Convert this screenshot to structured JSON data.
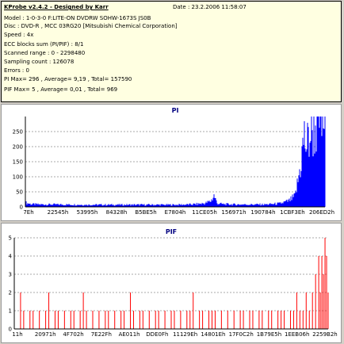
{
  "header": {
    "title": "KProbe v2.4.2 - Designed by Karr",
    "date": "Date : 23.2.2006 11:58:07",
    "model": "Model : 1-0-3-0 F:LITE-ON DVDRW SOHW-1673S JS0B",
    "disc": "Disc : DVD-R , MCC 03RG20  [Mitsubishi Chemical Corporation]",
    "speed": "Speed : 4x",
    "ecc": "ECC blocks sum (PI/PIF) : 8/1",
    "range": "Scanned range : 0 - 2298480",
    "sampling": "Sampling count : 126078",
    "errors": "Errors : 0",
    "pi_stats": "PI Max= 296 , Average= 9,19 , Total= 157590",
    "pif_stats": "PIF Max= 5 , Average= 0,01 , Total= 969"
  },
  "chart_data": [
    {
      "type": "bar",
      "title": "PI",
      "color": "#0000ff",
      "ylim": [
        0,
        300
      ],
      "yticks": [
        0,
        50,
        100,
        150,
        200,
        250
      ],
      "grid": true,
      "x_tick_labels": [
        "7Eh",
        "22545h",
        "53995h",
        "84328h",
        "B5BE5h",
        "E7804h",
        "11CE05h",
        "156971h",
        "190784h",
        "1CBF3Eh",
        "206ED2h"
      ],
      "summary": {
        "max": 296,
        "average": 9.19,
        "total": 157590
      },
      "profile": [
        [
          0,
          14
        ],
        [
          2,
          9
        ],
        [
          5,
          8
        ],
        [
          10,
          8
        ],
        [
          20,
          7
        ],
        [
          30,
          7
        ],
        [
          40,
          7
        ],
        [
          50,
          7
        ],
        [
          55,
          8
        ],
        [
          58,
          10
        ],
        [
          60,
          12
        ],
        [
          62,
          20
        ],
        [
          63,
          38
        ],
        [
          64,
          12
        ],
        [
          66,
          9
        ],
        [
          70,
          8
        ],
        [
          75,
          8
        ],
        [
          80,
          8
        ],
        [
          85,
          11
        ],
        [
          88,
          20
        ],
        [
          90,
          35
        ],
        [
          91,
          85
        ],
        [
          92,
          150
        ],
        [
          93,
          230
        ],
        [
          94,
          200
        ],
        [
          95,
          240
        ],
        [
          96,
          260
        ],
        [
          97,
          270
        ],
        [
          98,
          296
        ],
        [
          99,
          285
        ],
        [
          100,
          280
        ]
      ]
    },
    {
      "type": "bar",
      "title": "PIF",
      "color": "#ff0000",
      "ylim": [
        0,
        5
      ],
      "yticks": [
        0,
        1,
        2,
        3,
        4,
        5
      ],
      "grid": true,
      "x_tick_labels": [
        "11h",
        "20971h",
        "4F702h",
        "7E22Fh",
        "AE011h",
        "DDE0Fh",
        "11129Eh",
        "14801Eh",
        "17F0C2h",
        "1B79E5h",
        "1EEB06h",
        "2259B2h"
      ],
      "summary": {
        "max": 5,
        "average": 0.01,
        "total": 969
      },
      "spikes": [
        [
          2,
          2
        ],
        [
          3,
          1
        ],
        [
          5,
          1
        ],
        [
          6,
          1
        ],
        [
          8,
          1
        ],
        [
          10,
          1
        ],
        [
          11,
          2
        ],
        [
          13,
          1
        ],
        [
          14,
          1
        ],
        [
          16,
          1
        ],
        [
          18,
          1
        ],
        [
          19,
          1
        ],
        [
          21,
          1
        ],
        [
          22,
          2
        ],
        [
          23,
          1
        ],
        [
          25,
          1
        ],
        [
          27,
          1
        ],
        [
          29,
          1
        ],
        [
          30,
          1
        ],
        [
          32,
          1
        ],
        [
          34,
          1
        ],
        [
          35,
          1
        ],
        [
          37,
          2
        ],
        [
          38,
          1
        ],
        [
          40,
          1
        ],
        [
          41,
          1
        ],
        [
          43,
          1
        ],
        [
          45,
          1
        ],
        [
          46,
          1
        ],
        [
          48,
          1
        ],
        [
          50,
          1
        ],
        [
          51,
          1
        ],
        [
          53,
          1
        ],
        [
          55,
          1
        ],
        [
          56,
          1
        ],
        [
          57,
          2
        ],
        [
          59,
          1
        ],
        [
          60,
          1
        ],
        [
          62,
          1
        ],
        [
          63,
          1
        ],
        [
          64,
          1
        ],
        [
          66,
          1
        ],
        [
          68,
          1
        ],
        [
          70,
          1
        ],
        [
          72,
          1
        ],
        [
          73,
          1
        ],
        [
          75,
          1
        ],
        [
          76,
          1
        ],
        [
          78,
          1
        ],
        [
          79,
          1
        ],
        [
          81,
          1
        ],
        [
          82,
          1
        ],
        [
          84,
          1
        ],
        [
          85,
          1
        ],
        [
          86,
          1
        ],
        [
          88,
          1
        ],
        [
          89,
          1
        ],
        [
          90,
          2
        ],
        [
          91,
          1
        ],
        [
          92,
          1
        ],
        [
          93,
          2
        ],
        [
          94,
          1
        ],
        [
          95,
          2
        ],
        [
          96,
          3
        ],
        [
          97,
          4
        ],
        [
          97.5,
          2
        ],
        [
          98,
          4
        ],
        [
          98.5,
          3
        ],
        [
          99,
          5
        ],
        [
          99.5,
          4
        ],
        [
          100,
          2
        ]
      ]
    }
  ]
}
